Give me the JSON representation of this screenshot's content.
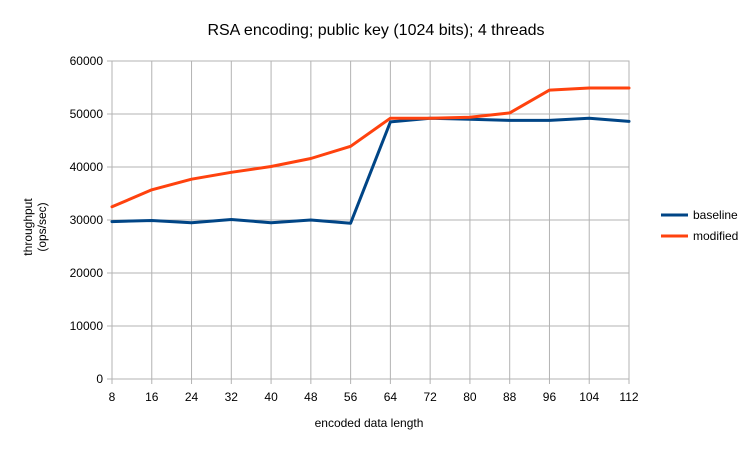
{
  "chart_data": {
    "type": "line",
    "title": "RSA encoding; public key (1024 bits); 4 threads",
    "xlabel": "encoded data length",
    "ylabel_lines": [
      "throughput",
      "(ops/sec)"
    ],
    "categories": [
      "8",
      "16",
      "24",
      "32",
      "40",
      "48",
      "56",
      "64",
      "72",
      "80",
      "88",
      "96",
      "104",
      "112"
    ],
    "ylim": [
      0,
      60000
    ],
    "yticks": [
      "0",
      "10000",
      "20000",
      "30000",
      "40000",
      "50000",
      "60000"
    ],
    "grid": true,
    "legend_position": "right",
    "series": [
      {
        "name": "baseline",
        "color": "#004586",
        "values": [
          29700,
          29900,
          29500,
          30100,
          29500,
          30000,
          29400,
          48500,
          49200,
          49000,
          48800,
          48800,
          49200,
          48600
        ]
      },
      {
        "name": "modified",
        "color": "#ff420e",
        "values": [
          32500,
          35700,
          37700,
          39000,
          40100,
          41600,
          43900,
          49200,
          49200,
          49400,
          50200,
          54500,
          54900,
          54900
        ]
      }
    ]
  }
}
